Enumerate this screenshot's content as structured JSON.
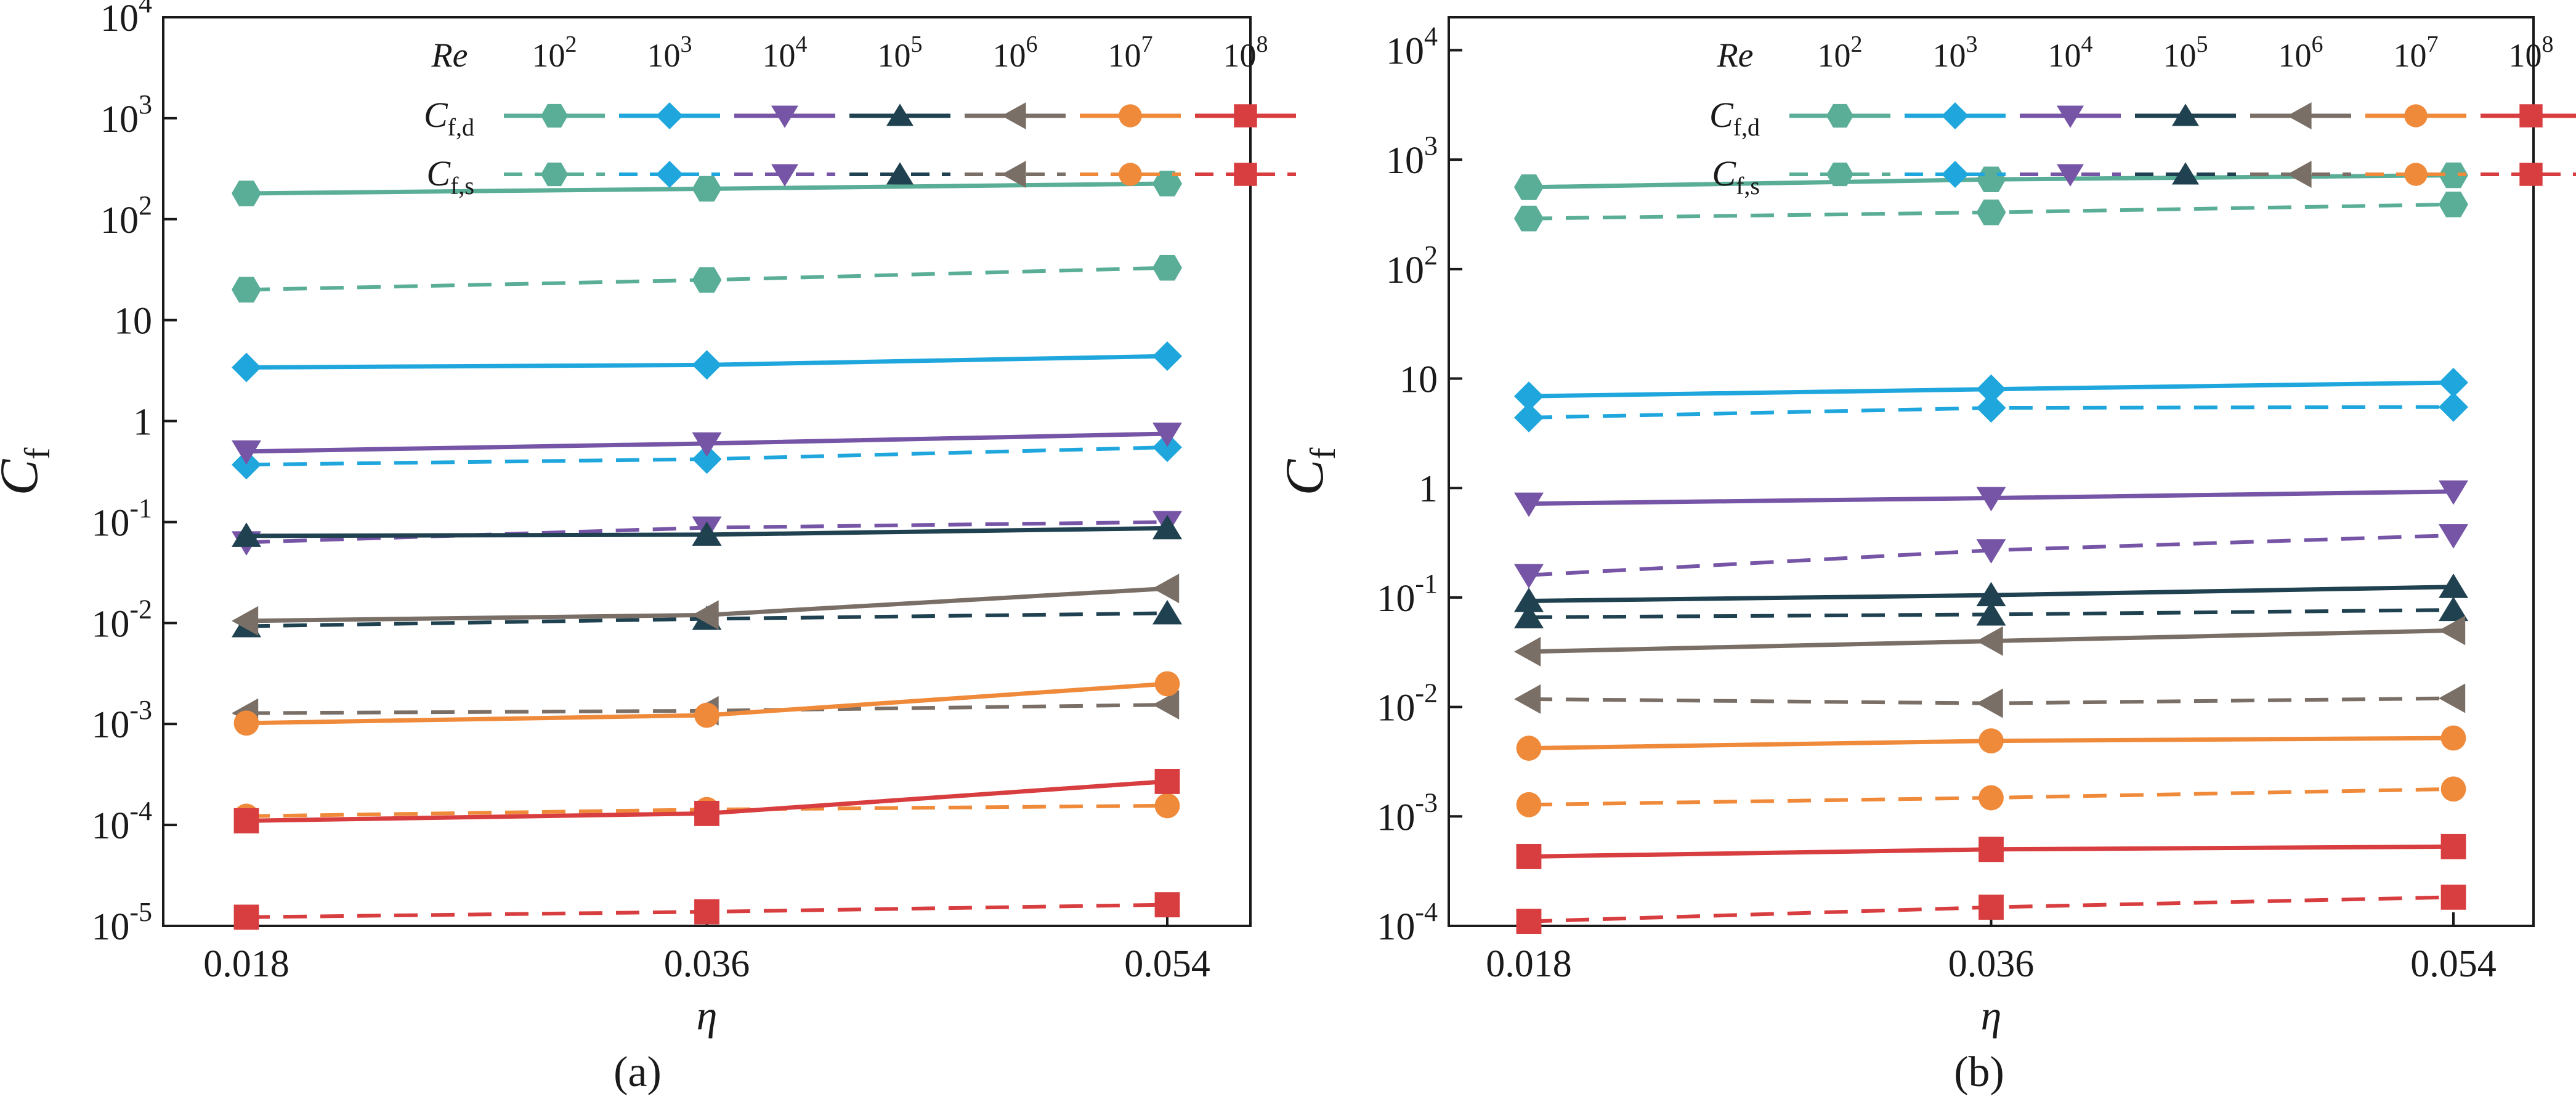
{
  "figure": {
    "labels": [
      "(a)",
      "(b)"
    ]
  },
  "legend": {
    "header": "Re",
    "row_d_label": "C",
    "row_d_sub": "f,d",
    "row_s_label": "C",
    "row_s_sub": "f,s",
    "entries": [
      {
        "base": "10",
        "exp": "2",
        "color": "#5aae98",
        "marker": "hexagon"
      },
      {
        "base": "10",
        "exp": "3",
        "color": "#1fa7dd",
        "marker": "diamond"
      },
      {
        "base": "10",
        "exp": "4",
        "color": "#7654a6",
        "marker": "triangle-down"
      },
      {
        "base": "10",
        "exp": "5",
        "color": "#1f4150",
        "marker": "triangle-up"
      },
      {
        "base": "10",
        "exp": "6",
        "color": "#7a6f66",
        "marker": "triangle-left"
      },
      {
        "base": "10",
        "exp": "7",
        "color": "#f08a3b",
        "marker": "circle"
      },
      {
        "base": "10",
        "exp": "8",
        "color": "#d83d3f",
        "marker": "square"
      }
    ]
  },
  "chart_data": [
    {
      "panel": "(a)",
      "type": "line",
      "yscale": "log",
      "x": [
        0.018,
        0.036,
        0.054
      ],
      "xticks": [
        "0.018",
        "0.036",
        "0.054"
      ],
      "xlabel": "η",
      "ylabel": "C",
      "ylabel_sub": "f",
      "ylim": [
        1e-05,
        10000.0
      ],
      "yticks": [
        {
          "v": 10000.0,
          "t": "10",
          "e": "4"
        },
        {
          "v": 1000.0,
          "t": "10",
          "e": "3"
        },
        {
          "v": 100.0,
          "t": "10",
          "e": "2"
        },
        {
          "v": 10,
          "t": "10",
          "e": ""
        },
        {
          "v": 1,
          "t": "1",
          "e": ""
        },
        {
          "v": 0.1,
          "t": "10",
          "e": "-1"
        },
        {
          "v": 0.01,
          "t": "10",
          "e": "-2"
        },
        {
          "v": 0.001,
          "t": "10",
          "e": "-3"
        },
        {
          "v": 0.0001,
          "t": "10",
          "e": "-4"
        },
        {
          "v": 1e-05,
          "t": "10",
          "e": "-5"
        }
      ],
      "series": [
        {
          "re": "10^2",
          "kind": "Cf,d",
          "values": [
            180,
            200,
            225
          ]
        },
        {
          "re": "10^2",
          "kind": "Cf,s",
          "values": [
            20,
            25,
            33
          ]
        },
        {
          "re": "10^3",
          "kind": "Cf,d",
          "values": [
            3.4,
            3.6,
            4.4
          ]
        },
        {
          "re": "10^3",
          "kind": "Cf,s",
          "values": [
            0.37,
            0.42,
            0.55
          ]
        },
        {
          "re": "10^4",
          "kind": "Cf,d",
          "values": [
            0.5,
            0.6,
            0.75
          ]
        },
        {
          "re": "10^4",
          "kind": "Cf,s",
          "values": [
            0.063,
            0.088,
            0.1
          ]
        },
        {
          "re": "10^5",
          "kind": "Cf,d",
          "values": [
            0.073,
            0.075,
            0.087
          ]
        },
        {
          "re": "10^5",
          "kind": "Cf,s",
          "values": [
            0.0093,
            0.011,
            0.0125
          ]
        },
        {
          "re": "10^6",
          "kind": "Cf,d",
          "values": [
            0.0105,
            0.012,
            0.022
          ]
        },
        {
          "re": "10^6",
          "kind": "Cf,s",
          "values": [
            0.00128,
            0.00135,
            0.00155
          ]
        },
        {
          "re": "10^7",
          "kind": "Cf,d",
          "values": [
            0.00102,
            0.00122,
            0.0025
          ]
        },
        {
          "re": "10^7",
          "kind": "Cf,s",
          "values": [
            0.000122,
            0.000142,
            0.000155
          ]
        },
        {
          "re": "10^8",
          "kind": "Cf,d",
          "values": [
            0.00011,
            0.00013,
            0.00027
          ]
        },
        {
          "re": "10^8",
          "kind": "Cf,s",
          "values": [
            1.22e-05,
            1.38e-05,
            1.62e-05
          ]
        }
      ]
    },
    {
      "panel": "(b)",
      "type": "line",
      "yscale": "log",
      "x": [
        0.018,
        0.036,
        0.054
      ],
      "xticks": [
        "0.018",
        "0.036",
        "0.054"
      ],
      "xlabel": "η",
      "ylabel": "C",
      "ylabel_sub": "f",
      "ylim": [
        0.0001,
        20000.0
      ],
      "yticks": [
        {
          "v": 10000.0,
          "t": "10",
          "e": "4"
        },
        {
          "v": 1000.0,
          "t": "10",
          "e": "3"
        },
        {
          "v": 100.0,
          "t": "10",
          "e": "2"
        },
        {
          "v": 10,
          "t": "10",
          "e": ""
        },
        {
          "v": 1,
          "t": "1",
          "e": ""
        },
        {
          "v": 0.1,
          "t": "10",
          "e": "-1"
        },
        {
          "v": 0.01,
          "t": "10",
          "e": "-2"
        },
        {
          "v": 0.001,
          "t": "10",
          "e": "-3"
        },
        {
          "v": 0.0001,
          "t": "10",
          "e": "-4"
        }
      ],
      "series": [
        {
          "re": "10^2",
          "kind": "Cf,d",
          "values": [
            560,
            660,
            720
          ]
        },
        {
          "re": "10^2",
          "kind": "Cf,s",
          "values": [
            290,
            330,
            390
          ]
        },
        {
          "re": "10^3",
          "kind": "Cf,d",
          "values": [
            6.9,
            8.0,
            9.2
          ]
        },
        {
          "re": "10^3",
          "kind": "Cf,s",
          "values": [
            4.4,
            5.4,
            5.5
          ]
        },
        {
          "re": "10^4",
          "kind": "Cf,d",
          "values": [
            0.72,
            0.81,
            0.93
          ]
        },
        {
          "re": "10^4",
          "kind": "Cf,s",
          "values": [
            0.16,
            0.27,
            0.37
          ]
        },
        {
          "re": "10^5",
          "kind": "Cf,d",
          "values": [
            0.093,
            0.105,
            0.125
          ]
        },
        {
          "re": "10^5",
          "kind": "Cf,s",
          "values": [
            0.066,
            0.07,
            0.077
          ]
        },
        {
          "re": "10^6",
          "kind": "Cf,d",
          "values": [
            0.032,
            0.04,
            0.05
          ]
        },
        {
          "re": "10^6",
          "kind": "Cf,s",
          "values": [
            0.0118,
            0.0108,
            0.012
          ]
        },
        {
          "re": "10^7",
          "kind": "Cf,d",
          "values": [
            0.0042,
            0.0049,
            0.0052
          ]
        },
        {
          "re": "10^7",
          "kind": "Cf,s",
          "values": [
            0.00128,
            0.00148,
            0.00178
          ]
        },
        {
          "re": "10^8",
          "kind": "Cf,d",
          "values": [
            0.00043,
            0.0005,
            0.00053
          ]
        },
        {
          "re": "10^8",
          "kind": "Cf,s",
          "values": [
            0.00011,
            0.000148,
            0.000183
          ]
        }
      ]
    }
  ]
}
